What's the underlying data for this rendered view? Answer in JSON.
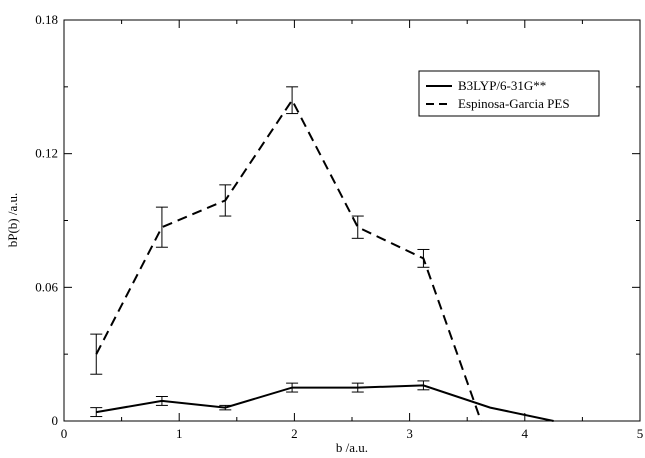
{
  "chart_data": {
    "type": "line",
    "title": "",
    "xlabel": "b /a.u.",
    "ylabel": "bP(b) /a.u.",
    "xlim": [
      0,
      5
    ],
    "ylim": [
      0,
      0.18
    ],
    "xticks": [
      "0",
      "1",
      "2",
      "3",
      "4",
      "5"
    ],
    "yticks": [
      "0",
      "0.06",
      "0.12",
      "0.18"
    ],
    "grid": false,
    "legend_position": "top-right",
    "series": [
      {
        "name": "B3LYP/6-31G**",
        "style": "solid",
        "color": "#000000",
        "x": [
          0.28,
          0.85,
          1.4,
          1.98,
          2.55,
          3.12,
          3.7,
          4.25
        ],
        "y": [
          0.004,
          0.009,
          0.006,
          0.015,
          0.015,
          0.016,
          0.006,
          0.0
        ],
        "err": [
          0.002,
          0.002,
          0.001,
          0.002,
          0.002,
          0.002,
          0.0,
          0.0
        ]
      },
      {
        "name": "Espinosa-Garcia PES",
        "style": "dashed",
        "color": "#000000",
        "x": [
          0.28,
          0.85,
          1.4,
          1.98,
          2.55,
          3.12,
          3.62
        ],
        "y": [
          0.03,
          0.087,
          0.099,
          0.144,
          0.087,
          0.073,
          0.0
        ],
        "err": [
          0.009,
          0.009,
          0.007,
          0.006,
          0.005,
          0.004,
          0.0
        ]
      }
    ]
  }
}
